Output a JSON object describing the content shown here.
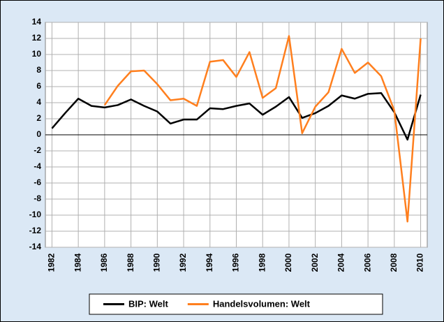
{
  "chart_data": {
    "type": "line",
    "x": [
      1982,
      1983,
      1984,
      1985,
      1986,
      1987,
      1988,
      1989,
      1990,
      1991,
      1992,
      1993,
      1994,
      1995,
      1996,
      1997,
      1998,
      1999,
      2000,
      2001,
      2002,
      2003,
      2004,
      2005,
      2006,
      2007,
      2008,
      2009,
      2010
    ],
    "series": [
      {
        "name": "BIP: Welt",
        "color": "#000000",
        "values": [
          0.8,
          2.7,
          4.5,
          3.6,
          3.4,
          3.7,
          4.4,
          3.6,
          2.9,
          1.4,
          1.9,
          1.9,
          3.3,
          3.2,
          3.6,
          3.9,
          2.5,
          3.5,
          4.7,
          2.1,
          2.7,
          3.6,
          4.9,
          4.5,
          5.1,
          5.2,
          2.8,
          -0.6,
          5.0
        ]
      },
      {
        "name": "Handelsvolumen: Welt",
        "color": "#ff7f1e",
        "values": [
          null,
          null,
          null,
          null,
          3.7,
          6.1,
          7.9,
          8.0,
          6.3,
          4.3,
          4.5,
          3.6,
          9.1,
          9.3,
          7.2,
          10.3,
          4.6,
          5.8,
          12.3,
          0.2,
          3.5,
          5.3,
          10.7,
          7.7,
          9.0,
          7.3,
          3.0,
          -10.8,
          12.0
        ]
      }
    ],
    "xlim": [
      1981.5,
      2010.5
    ],
    "xticks": [
      1982,
      1984,
      1986,
      1988,
      1990,
      1992,
      1994,
      1996,
      1998,
      2000,
      2002,
      2004,
      2006,
      2008,
      2010
    ],
    "ylim": [
      -14,
      14
    ],
    "yticks": [
      -14,
      -12,
      -10,
      -8,
      -6,
      -4,
      -2,
      0,
      2,
      4,
      6,
      8,
      10,
      12,
      14
    ],
    "grid": true,
    "legend": "bottom"
  }
}
